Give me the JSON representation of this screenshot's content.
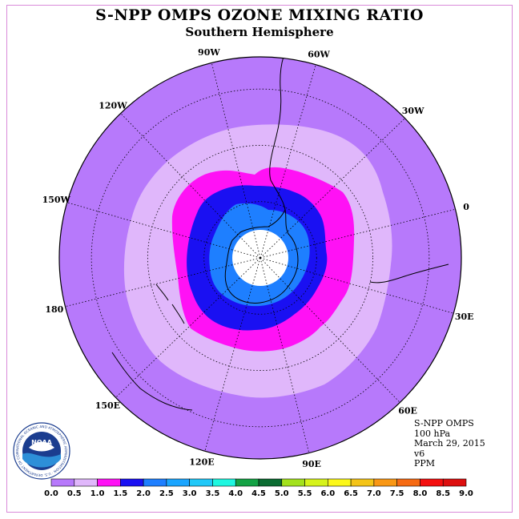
{
  "title": "S-NPP OMPS OZONE MIXING RATIO",
  "subtitle": "Southern Hemisphere",
  "longitude_labels": [
    {
      "text": "90W",
      "lon": -90
    },
    {
      "text": "60W",
      "lon": -60
    },
    {
      "text": "30W",
      "lon": -30
    },
    {
      "text": "0",
      "lon": 0
    },
    {
      "text": "30E",
      "lon": 30
    },
    {
      "text": "60E",
      "lon": 60
    },
    {
      "text": "90E",
      "lon": 90
    },
    {
      "text": "120E",
      "lon": 120
    },
    {
      "text": "150E",
      "lon": 150
    },
    {
      "text": "180",
      "lon": 180
    },
    {
      "text": "150W",
      "lon": -150
    },
    {
      "text": "120W",
      "lon": -120
    }
  ],
  "info": {
    "instrument": "S-NPP OMPS",
    "level": "100 hPa",
    "date": "March 29, 2015",
    "version": "v6",
    "units": "PPM"
  },
  "logo": {
    "text": "NOAA",
    "ring_text": "NATIONAL OCEANIC AND ATMOSPHERIC ADMINISTRATION · U.S. DEPARTMENT OF COMMERCE"
  },
  "colorbar": {
    "ticks": [
      "0.0",
      "0.5",
      "1.0",
      "1.5",
      "2.0",
      "2.5",
      "3.0",
      "3.5",
      "4.0",
      "4.5",
      "5.0",
      "5.5",
      "6.0",
      "6.5",
      "7.0",
      "7.5",
      "8.0",
      "8.5",
      "9.0"
    ],
    "colors": [
      "#b779fb",
      "#e0b7fb",
      "#ff11f5",
      "#1a10f2",
      "#1e7fff",
      "#1aa5ff",
      "#20c8f8",
      "#1ef7e0",
      "#13a244",
      "#0b6b31",
      "#a3e11d",
      "#d6f31b",
      "#fcf81a",
      "#f4c418",
      "#f99714",
      "#f66a12",
      "#f40f0f",
      "#dd0f0f"
    ]
  },
  "map_colors": {
    "background": "#b779fb",
    "band_0_5_1_0": "#e0b7fb",
    "band_1_0_1_5": "#ff11f5",
    "band_1_5_2_0": "#1a10f2",
    "band_2_0_2_5": "#1e7fff",
    "polar_night": "#ffffff"
  }
}
